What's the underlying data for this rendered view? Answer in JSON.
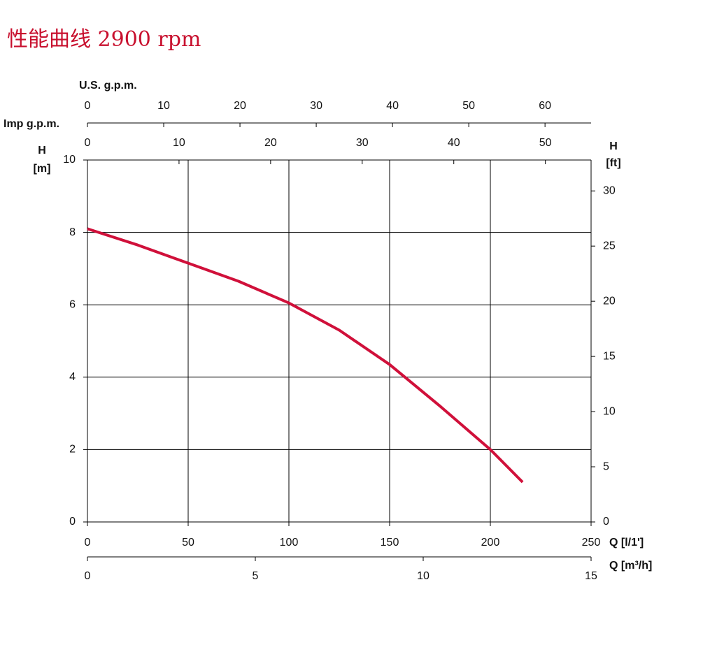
{
  "chart_data": {
    "type": "line",
    "title": "性能曲线 2900 rpm",
    "x_label": "Q [l/1']",
    "y_label": [
      "H",
      "[m]"
    ],
    "y2_label": [
      "H",
      "[ft]"
    ],
    "x": [
      0,
      25,
      50,
      75,
      100,
      125,
      150,
      175,
      200,
      216
    ],
    "series": [
      {
        "color": "#d0103a",
        "values": [
          8.1,
          7.65,
          7.15,
          6.65,
          6.05,
          5.3,
          4.35,
          3.2,
          2.0,
          1.1
        ]
      }
    ],
    "xlim": [
      0,
      250
    ],
    "xticks": [
      0,
      50,
      100,
      150,
      200,
      250
    ],
    "ylim": [
      0,
      10
    ],
    "yticks": [
      0,
      2,
      4,
      6,
      8,
      10
    ],
    "y2lim": [
      0,
      32.8
    ],
    "y2ticks": [
      0,
      5,
      10,
      15,
      20,
      25,
      30
    ],
    "grid": true,
    "extra_x_axes": [
      {
        "label": "Q [m³/h]",
        "lim": [
          0,
          15
        ],
        "ticks": [
          0,
          5,
          10,
          15
        ]
      },
      {
        "label": "U.S. g.p.m.",
        "lim": [
          0,
          66.04
        ],
        "ticks": [
          0,
          10,
          20,
          30,
          40,
          50,
          60
        ]
      },
      {
        "label": "Imp g.p.m.",
        "lim": [
          0,
          54.99
        ],
        "ticks": [
          0,
          10,
          20,
          30,
          40,
          50
        ]
      }
    ]
  }
}
